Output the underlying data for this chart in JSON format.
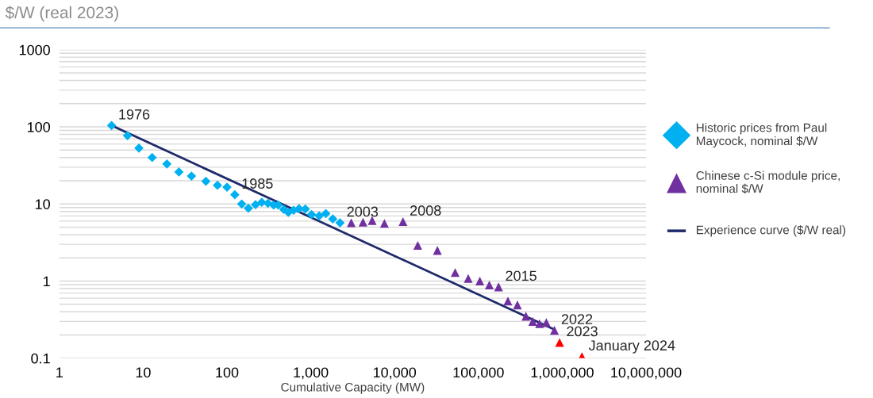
{
  "chart_data": {
    "type": "scatter",
    "title": "$/W (real 2023)",
    "xlabel": "Cumulative Capacity (MW)",
    "log": "xy",
    "xlim": [
      1,
      10000000
    ],
    "ylim": [
      0.1,
      1000
    ],
    "xticks": [
      {
        "value": 1,
        "label": "1"
      },
      {
        "value": 10,
        "label": "10"
      },
      {
        "value": 100,
        "label": "100"
      },
      {
        "value": 1000,
        "label": "1,000"
      },
      {
        "value": 10000,
        "label": "10,000"
      },
      {
        "value": 100000,
        "label": "100,000"
      },
      {
        "value": 1000000,
        "label": "1,000,000"
      },
      {
        "value": 10000000,
        "label": "10,000,000"
      }
    ],
    "yticks": [
      0.1,
      1,
      10,
      100,
      1000
    ],
    "grid": "y",
    "legend": "right",
    "series": [
      {
        "name": "Historic prices from Paul Maycock, nominal $/W",
        "marker": "diamond",
        "color": "#00b0f0",
        "x": [
          4.2,
          6.5,
          8.9,
          12.8,
          19.2,
          26.7,
          37.7,
          56,
          77,
          100,
          124,
          150,
          180,
          219,
          260,
          308,
          361,
          408,
          477,
          539,
          623,
          724,
          860,
          1020,
          1260,
          1510,
          1830,
          2230
        ],
        "values": [
          104,
          77,
          53,
          40,
          33,
          26,
          23,
          19.7,
          17.5,
          16.5,
          13.2,
          10,
          8.8,
          9.8,
          10.5,
          10.2,
          9.7,
          9.7,
          8.5,
          7.8,
          8.3,
          8.7,
          8.6,
          7.3,
          7.0,
          7.5,
          6.4,
          5.7
        ]
      },
      {
        "name": "Chinese c-Si module price, nominal $/W",
        "marker": "triangle",
        "color": "#7030a0",
        "x": [
          3040,
          4200,
          5400,
          7560,
          12600,
          18900,
          32400,
          52800,
          75600,
          104000,
          135000,
          174000,
          225000,
          292000,
          369000,
          445000,
          536000,
          646000,
          807000
        ],
        "values": [
          5.7,
          5.8,
          6.1,
          5.6,
          5.9,
          2.9,
          2.5,
          1.29,
          1.08,
          1.0,
          0.89,
          0.84,
          0.55,
          0.49,
          0.35,
          0.3,
          0.28,
          0.29,
          0.23
        ]
      },
      {
        "marker": "triangle",
        "color": "#ff0000",
        "x": [
          931000,
          1720000
        ],
        "values": [
          0.16,
          0.105
        ]
      },
      {
        "name": "Experience curve ($/W real)",
        "type": "line",
        "marker": "none",
        "line_style": "solid",
        "color": "#1f2a6b",
        "x": [
          4.2,
          807000
        ],
        "values": [
          104,
          0.235
        ]
      }
    ],
    "annotations": [
      {
        "text": "1976",
        "x": 4.2,
        "y": 104
      },
      {
        "text": "1985",
        "x": 124,
        "y": 13.2
      },
      {
        "text": "2003",
        "x": 2230,
        "y": 5.7
      },
      {
        "text": "2008",
        "x": 12600,
        "y": 5.9
      },
      {
        "text": "2015",
        "x": 174000,
        "y": 0.84
      },
      {
        "text": "2022",
        "x": 807000,
        "y": 0.23
      },
      {
        "text": "2023",
        "x": 931000,
        "y": 0.16
      },
      {
        "text": "January 2024",
        "x": 1720000,
        "y": 0.105
      }
    ]
  }
}
